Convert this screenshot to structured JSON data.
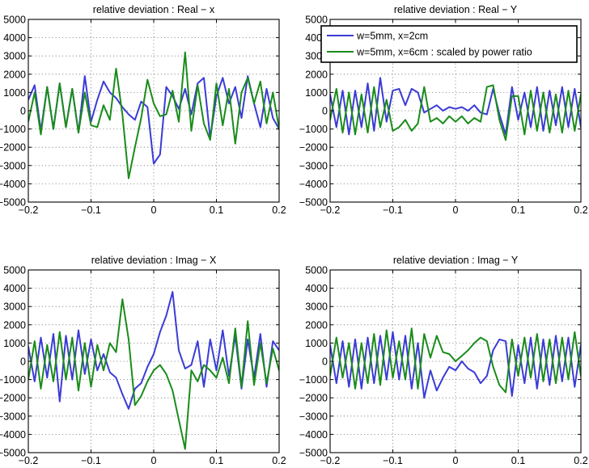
{
  "colors": {
    "series1": "#3b3bd6",
    "series2": "#1a8c1a"
  },
  "chart_data": [
    {
      "type": "line",
      "title": "relative deviation : Real − x",
      "xlim": [
        -0.2,
        0.2
      ],
      "ylim": [
        -5000,
        5000
      ],
      "xticks": [
        -0.2,
        -0.1,
        0,
        0.1,
        0.2
      ],
      "xtick_labels": [
        "−0.2",
        "−0.1",
        "0",
        "0.1",
        "0.2"
      ],
      "yticks": [
        5000,
        4000,
        3000,
        2000,
        1000,
        0,
        -1000,
        -2000,
        -3000,
        -4000,
        -5000
      ],
      "ytick_labels": [
        "5000",
        "4000",
        "3000",
        "2000",
        "1000",
        "0",
        "−1000",
        "−2000",
        "−3000",
        "−4000",
        "−5000"
      ],
      "grid": true,
      "series": [
        {
          "name": "w=5mm, x=2cm",
          "color": "#3b3bd6",
          "x": [
            -0.2,
            -0.19,
            -0.18,
            -0.17,
            -0.16,
            -0.15,
            -0.14,
            -0.13,
            -0.12,
            -0.11,
            -0.1,
            -0.09,
            -0.08,
            -0.07,
            -0.06,
            -0.05,
            -0.04,
            -0.03,
            -0.02,
            -0.01,
            0,
            0.01,
            0.02,
            0.03,
            0.04,
            0.05,
            0.06,
            0.07,
            0.08,
            0.09,
            0.1,
            0.11,
            0.12,
            0.13,
            0.14,
            0.15,
            0.16,
            0.17,
            0.18,
            0.19,
            0.2
          ],
          "y": [
            600,
            1400,
            -1100,
            1300,
            -1000,
            1500,
            -900,
            1200,
            -1200,
            1900,
            -600,
            600,
            1600,
            1000,
            700,
            200,
            -200,
            -500,
            500,
            200,
            -2900,
            -2400,
            1300,
            800,
            100,
            1200,
            -200,
            1500,
            1800,
            -1500,
            800,
            1800,
            400,
            1300,
            -400,
            1900,
            400,
            -900,
            1200,
            -400,
            -1000
          ]
        },
        {
          "name": "w=5mm, x=6cm : scaled by power ratio",
          "color": "#1a8c1a",
          "x": [
            -0.2,
            -0.19,
            -0.18,
            -0.17,
            -0.16,
            -0.15,
            -0.14,
            -0.13,
            -0.12,
            -0.11,
            -0.1,
            -0.09,
            -0.08,
            -0.07,
            -0.06,
            -0.05,
            -0.04,
            -0.03,
            -0.02,
            -0.01,
            0,
            0.01,
            0.02,
            0.03,
            0.04,
            0.05,
            0.06,
            0.07,
            0.08,
            0.09,
            0.1,
            0.11,
            0.12,
            0.13,
            0.14,
            0.15,
            0.16,
            0.17,
            0.18,
            0.19,
            0.2
          ],
          "y": [
            -600,
            1000,
            -1300,
            1300,
            -1000,
            1500,
            -900,
            1200,
            -1200,
            1000,
            -800,
            -900,
            300,
            -500,
            2300,
            -200,
            -3700,
            -2000,
            -400,
            1700,
            400,
            -300,
            -200,
            1100,
            -600,
            3200,
            -1100,
            1400,
            -700,
            -1600,
            1500,
            -800,
            1200,
            -1800,
            1000,
            1800,
            400,
            1600,
            -700,
            1000,
            -1000
          ]
        }
      ]
    },
    {
      "type": "line",
      "title": "relative deviation : Real − Y",
      "xlim": [
        -0.2,
        0.2
      ],
      "ylim": [
        -5000,
        5000
      ],
      "xticks": [
        -0.2,
        -0.1,
        0,
        0.1,
        0.2
      ],
      "xtick_labels": [
        "−0.2",
        "−0.1",
        "0",
        "0.1",
        "0.2"
      ],
      "yticks": [
        5000,
        4000,
        3000,
        2000,
        1000,
        0,
        -1000,
        -2000,
        -3000,
        -4000,
        -5000
      ],
      "ytick_labels": [
        "5000",
        "4000",
        "3000",
        "2000",
        "1000",
        "0",
        "−1000",
        "−2000",
        "−3000",
        "−4000",
        "−5000"
      ],
      "grid": true,
      "legend": {
        "position": "top-right",
        "entries": [
          "w=5mm, x=2cm",
          "w=5mm, x=6cm : scaled by power ratio"
        ]
      },
      "series": [
        {
          "name": "w=5mm, x=2cm",
          "color": "#3b3bd6",
          "x": [
            -0.2,
            -0.19,
            -0.18,
            -0.17,
            -0.16,
            -0.15,
            -0.14,
            -0.13,
            -0.12,
            -0.11,
            -0.1,
            -0.09,
            -0.08,
            -0.07,
            -0.06,
            -0.05,
            -0.04,
            -0.03,
            -0.02,
            -0.01,
            0,
            0.01,
            0.02,
            0.03,
            0.04,
            0.05,
            0.06,
            0.07,
            0.08,
            0.09,
            0.1,
            0.11,
            0.12,
            0.13,
            0.14,
            0.15,
            0.16,
            0.17,
            0.18,
            0.19,
            0.2
          ],
          "y": [
            900,
            -900,
            1100,
            -1300,
            1100,
            -900,
            1500,
            -1100,
            1800,
            -600,
            1100,
            1200,
            300,
            1200,
            1000,
            -100,
            100,
            300,
            0,
            200,
            100,
            200,
            0,
            300,
            -100,
            -200,
            1200,
            -200,
            -1300,
            1300,
            -500,
            1000,
            -900,
            1300,
            -1100,
            1100,
            -800,
            1300,
            -900,
            1200,
            -900
          ]
        },
        {
          "name": "w=5mm, x=6cm : scaled by power ratio",
          "color": "#1a8c1a",
          "x": [
            -0.2,
            -0.19,
            -0.18,
            -0.17,
            -0.16,
            -0.15,
            -0.14,
            -0.13,
            -0.12,
            -0.11,
            -0.1,
            -0.09,
            -0.08,
            -0.07,
            -0.06,
            -0.05,
            -0.04,
            -0.03,
            -0.02,
            -0.01,
            0,
            0.01,
            0.02,
            0.03,
            0.04,
            0.05,
            0.06,
            0.07,
            0.08,
            0.09,
            0.1,
            0.11,
            0.12,
            0.13,
            0.14,
            0.15,
            0.16,
            0.17,
            0.18,
            0.19,
            0.2
          ],
          "y": [
            -500,
            1200,
            -1200,
            1000,
            -1300,
            900,
            -1200,
            1300,
            -900,
            600,
            -1100,
            -900,
            -500,
            -1100,
            -700,
            1300,
            -600,
            -400,
            -700,
            -300,
            -600,
            -300,
            -700,
            -400,
            -600,
            1300,
            1400,
            -500,
            -1600,
            800,
            800,
            -1300,
            1100,
            -1100,
            1000,
            -1200,
            900,
            -1200,
            1100,
            -1100,
            900
          ]
        }
      ]
    },
    {
      "type": "line",
      "title": "relative deviation : Imag − X",
      "xlim": [
        -0.2,
        0.2
      ],
      "ylim": [
        -5000,
        5000
      ],
      "xticks": [
        -0.2,
        -0.1,
        0,
        0.1,
        0.2
      ],
      "xtick_labels": [
        "−0.2",
        "−0.1",
        "0",
        "0.1",
        "0.2"
      ],
      "yticks": [
        5000,
        4000,
        3000,
        2000,
        1000,
        0,
        -1000,
        -2000,
        -3000,
        -4000,
        -5000
      ],
      "ytick_labels": [
        "5000",
        "4000",
        "3000",
        "2000",
        "1000",
        "0",
        "−1000",
        "−2000",
        "−3000",
        "−4000",
        "−5000"
      ],
      "grid": true,
      "series": [
        {
          "name": "w=5mm, x=2cm",
          "color": "#3b3bd6",
          "x": [
            -0.2,
            -0.19,
            -0.18,
            -0.17,
            -0.16,
            -0.15,
            -0.14,
            -0.13,
            -0.12,
            -0.11,
            -0.1,
            -0.09,
            -0.08,
            -0.07,
            -0.06,
            -0.05,
            -0.04,
            -0.03,
            -0.02,
            -0.01,
            0,
            0.01,
            0.02,
            0.03,
            0.04,
            0.05,
            0.06,
            0.07,
            0.08,
            0.09,
            0.1,
            0.11,
            0.12,
            0.13,
            0.14,
            0.15,
            0.16,
            0.17,
            0.18,
            0.19,
            0.2
          ],
          "y": [
            800,
            -1100,
            1300,
            -900,
            1500,
            -2200,
            1400,
            -1000,
            1700,
            -700,
            1200,
            -500,
            400,
            -600,
            -900,
            -1800,
            -2600,
            -1500,
            -1200,
            -300,
            400,
            1600,
            2500,
            3800,
            600,
            -400,
            -200,
            1100,
            -1400,
            1200,
            -500,
            1700,
            -800,
            1400,
            -1500,
            1200,
            -900,
            1500,
            -1400,
            1100,
            600
          ]
        },
        {
          "name": "w=5mm, x=6cm : scaled by power ratio",
          "color": "#1a8c1a",
          "x": [
            -0.2,
            -0.19,
            -0.18,
            -0.17,
            -0.16,
            -0.15,
            -0.14,
            -0.13,
            -0.12,
            -0.11,
            -0.1,
            -0.09,
            -0.08,
            -0.07,
            -0.06,
            -0.05,
            -0.04,
            -0.03,
            -0.02,
            -0.01,
            0,
            0.01,
            0.02,
            0.03,
            0.04,
            0.05,
            0.06,
            0.07,
            0.08,
            0.09,
            0.1,
            0.11,
            0.12,
            0.13,
            0.14,
            0.15,
            0.16,
            0.17,
            0.18,
            0.19,
            0.2
          ],
          "y": [
            -1000,
            1100,
            -1500,
            900,
            -1100,
            1600,
            -1000,
            1300,
            -1600,
            1000,
            -1400,
            900,
            -500,
            1000,
            500,
            3400,
            1200,
            -2400,
            -1900,
            -1100,
            -500,
            -200,
            -700,
            -1600,
            -3200,
            -4800,
            -500,
            -1100,
            -200,
            -500,
            -900,
            200,
            -1200,
            1800,
            -1400,
            2200,
            -1300,
            1000,
            -1200,
            700,
            -500
          ]
        }
      ]
    },
    {
      "type": "line",
      "title": "relative deviation : Imag − Y",
      "xlim": [
        -0.2,
        0.2
      ],
      "ylim": [
        -5000,
        5000
      ],
      "xticks": [
        -0.2,
        -0.1,
        0,
        0.1,
        0.2
      ],
      "xtick_labels": [
        "−0.2",
        "−0.1",
        "0",
        "0.1",
        "0.2"
      ],
      "yticks": [
        5000,
        4000,
        3000,
        2000,
        1000,
        0,
        -1000,
        -2000,
        -3000,
        -4000,
        -5000
      ],
      "ytick_labels": [
        "5000",
        "4000",
        "3000",
        "2000",
        "1000",
        "0",
        "−1000",
        "−2000",
        "−3000",
        "−4000",
        "−5000"
      ],
      "grid": true,
      "series": [
        {
          "name": "w=5mm, x=2cm",
          "color": "#3b3bd6",
          "x": [
            -0.2,
            -0.19,
            -0.18,
            -0.17,
            -0.16,
            -0.15,
            -0.14,
            -0.13,
            -0.12,
            -0.11,
            -0.1,
            -0.09,
            -0.08,
            -0.07,
            -0.06,
            -0.05,
            -0.04,
            -0.03,
            -0.02,
            -0.01,
            0,
            0.01,
            0.02,
            0.03,
            0.04,
            0.05,
            0.06,
            0.07,
            0.08,
            0.09,
            0.1,
            0.11,
            0.12,
            0.13,
            0.14,
            0.15,
            0.16,
            0.17,
            0.18,
            0.19,
            0.2
          ],
          "y": [
            900,
            -1200,
            1100,
            -1400,
            1200,
            -1500,
            1300,
            -1200,
            1400,
            -1000,
            1600,
            -1000,
            1400,
            -1500,
            1000,
            -2000,
            -500,
            -1600,
            -900,
            -300,
            -500,
            0,
            -400,
            -600,
            -1200,
            -800,
            600,
            1200,
            1100,
            -1900,
            900,
            -1200,
            1300,
            -1500,
            1200,
            -1300,
            1400,
            -1100,
            1300,
            -1400,
            900
          ]
        },
        {
          "name": "w=5mm, x=6cm : scaled by power ratio",
          "color": "#1a8c1a",
          "x": [
            -0.2,
            -0.19,
            -0.18,
            -0.17,
            -0.16,
            -0.15,
            -0.14,
            -0.13,
            -0.12,
            -0.11,
            -0.1,
            -0.09,
            -0.08,
            -0.07,
            -0.06,
            -0.05,
            -0.04,
            -0.03,
            -0.02,
            -0.01,
            0,
            0.01,
            0.02,
            0.03,
            0.04,
            0.05,
            0.06,
            0.07,
            0.08,
            0.09,
            0.1,
            0.11,
            0.12,
            0.13,
            0.14,
            0.15,
            0.16,
            0.17,
            0.18,
            0.19,
            0.2
          ],
          "y": [
            -800,
            1300,
            -900,
            1000,
            -1500,
            1000,
            -1200,
            1500,
            -1300,
            1700,
            -900,
            1100,
            -1000,
            1800,
            -1500,
            1500,
            200,
            1400,
            500,
            400,
            0,
            300,
            600,
            1000,
            1300,
            1100,
            -300,
            -1300,
            -1700,
            1200,
            -800,
            1300,
            -900,
            1500,
            -1100,
            1200,
            -1200,
            1300,
            -1000,
            1600,
            -800
          ]
        }
      ]
    }
  ]
}
